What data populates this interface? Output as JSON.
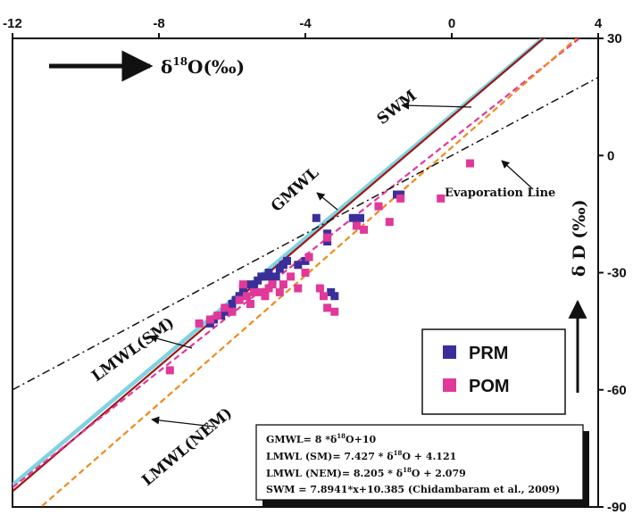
{
  "chart_data": {
    "type": "scatter",
    "xlim": [
      -12,
      4
    ],
    "ylim": [
      -90,
      30
    ],
    "x_ticks": [
      -12,
      -8,
      -4,
      0,
      4
    ],
    "y_ticks": [
      30,
      0,
      -30,
      -60,
      -90
    ],
    "x_axis_position": "top",
    "y_axis_position": "right",
    "grid": false,
    "xlabel": {
      "delta": "δ",
      "sup": "18",
      "rest": "O(‰)"
    },
    "ylabel": "δ D (‰)",
    "legend_position": "bottom-right",
    "series": [
      {
        "name": "PRM",
        "marker": "square",
        "color": "#3a2f9a",
        "points": [
          [
            -6.6,
            -43
          ],
          [
            -6.5,
            -42
          ],
          [
            -6.3,
            -41
          ],
          [
            -6.2,
            -40
          ],
          [
            -6.0,
            -38
          ],
          [
            -5.9,
            -37
          ],
          [
            -5.8,
            -36
          ],
          [
            -5.7,
            -34
          ],
          [
            -5.5,
            -33
          ],
          [
            -5.3,
            -32
          ],
          [
            -5.1,
            -31
          ],
          [
            -5.0,
            -30
          ],
          [
            -4.9,
            -32
          ],
          [
            -4.8,
            -31
          ],
          [
            -4.7,
            -29
          ],
          [
            -4.6,
            -28
          ],
          [
            -4.5,
            -27
          ],
          [
            -4.2,
            -28
          ],
          [
            -4.0,
            -27
          ],
          [
            -3.7,
            -16
          ],
          [
            -3.4,
            -20
          ],
          [
            -3.4,
            -22
          ],
          [
            -3.3,
            -35
          ],
          [
            -3.2,
            -36
          ],
          [
            -2.7,
            -16
          ],
          [
            -2.5,
            -16
          ],
          [
            -1.5,
            -10
          ],
          [
            -1.4,
            -10
          ],
          [
            -5.4,
            -34
          ],
          [
            -5.2,
            -31
          ]
        ]
      },
      {
        "name": "POM",
        "marker": "square",
        "color": "#e0399a",
        "points": [
          [
            -7.7,
            -55
          ],
          [
            -6.9,
            -43
          ],
          [
            -6.6,
            -42
          ],
          [
            -6.4,
            -41
          ],
          [
            -6.2,
            -39
          ],
          [
            -6.0,
            -40
          ],
          [
            -5.8,
            -37
          ],
          [
            -5.6,
            -36
          ],
          [
            -5.5,
            -38
          ],
          [
            -5.4,
            -35
          ],
          [
            -5.2,
            -35
          ],
          [
            -5.0,
            -34
          ],
          [
            -4.9,
            -33
          ],
          [
            -4.7,
            -35
          ],
          [
            -4.6,
            -33
          ],
          [
            -4.4,
            -31
          ],
          [
            -4.2,
            -34
          ],
          [
            -4.0,
            -30
          ],
          [
            -3.9,
            -26
          ],
          [
            -3.6,
            -34
          ],
          [
            -3.5,
            -36
          ],
          [
            -3.4,
            -39
          ],
          [
            -3.2,
            -40
          ],
          [
            -3.4,
            -21
          ],
          [
            -2.6,
            -18
          ],
          [
            -2.4,
            -19
          ],
          [
            -2.0,
            -13
          ],
          [
            -1.7,
            -17
          ],
          [
            -1.4,
            -11
          ],
          [
            -0.3,
            -11
          ],
          [
            0.5,
            -2
          ],
          [
            -5.7,
            -33
          ],
          [
            -5.1,
            -36
          ]
        ]
      }
    ],
    "lines": [
      {
        "name": "SWM",
        "slope": 7.8941,
        "intercept": 10.385,
        "color": "#7fd3e0",
        "style": "solid"
      },
      {
        "name": "GMWL",
        "slope": 8,
        "intercept": 10,
        "color": "#a11515",
        "style": "solid"
      },
      {
        "name": "LMWL(SM)",
        "slope": 7.427,
        "intercept": 4.121,
        "color": "#e0399a",
        "style": "dashed"
      },
      {
        "name": "LMWL(NEM)",
        "slope": 8.205,
        "intercept": 2.079,
        "color": "#f08a1c",
        "style": "dashed"
      },
      {
        "name": "Evaporation Line",
        "slope": 5.0,
        "intercept": 0.0,
        "color": "#111111",
        "style": "dashdot"
      }
    ],
    "annotations": {
      "swm": "SWM",
      "gmwl": "GMWL",
      "evaporation": "Evaporation Line",
      "lmwl_sm": "LMWL(SM)",
      "lmwl_nem": "LMWL(NEM)"
    },
    "equations": {
      "gmwl": {
        "lead": "GMWL= 8 *δ",
        "sup": "18",
        "tail": "O+10"
      },
      "lmwl_sm": {
        "lead": "LMWL (SM)= 7.427 * δ",
        "sup": "18",
        "tail": "O + 4.121"
      },
      "lmwl_nem": {
        "lead": "LMWL (NEM)= 8.205 * δ",
        "sup": "18",
        "tail": "O + 2.079"
      },
      "swm": "SWM = 7.8941*x+10.385 (Chidambaram et al., 2009)"
    }
  }
}
